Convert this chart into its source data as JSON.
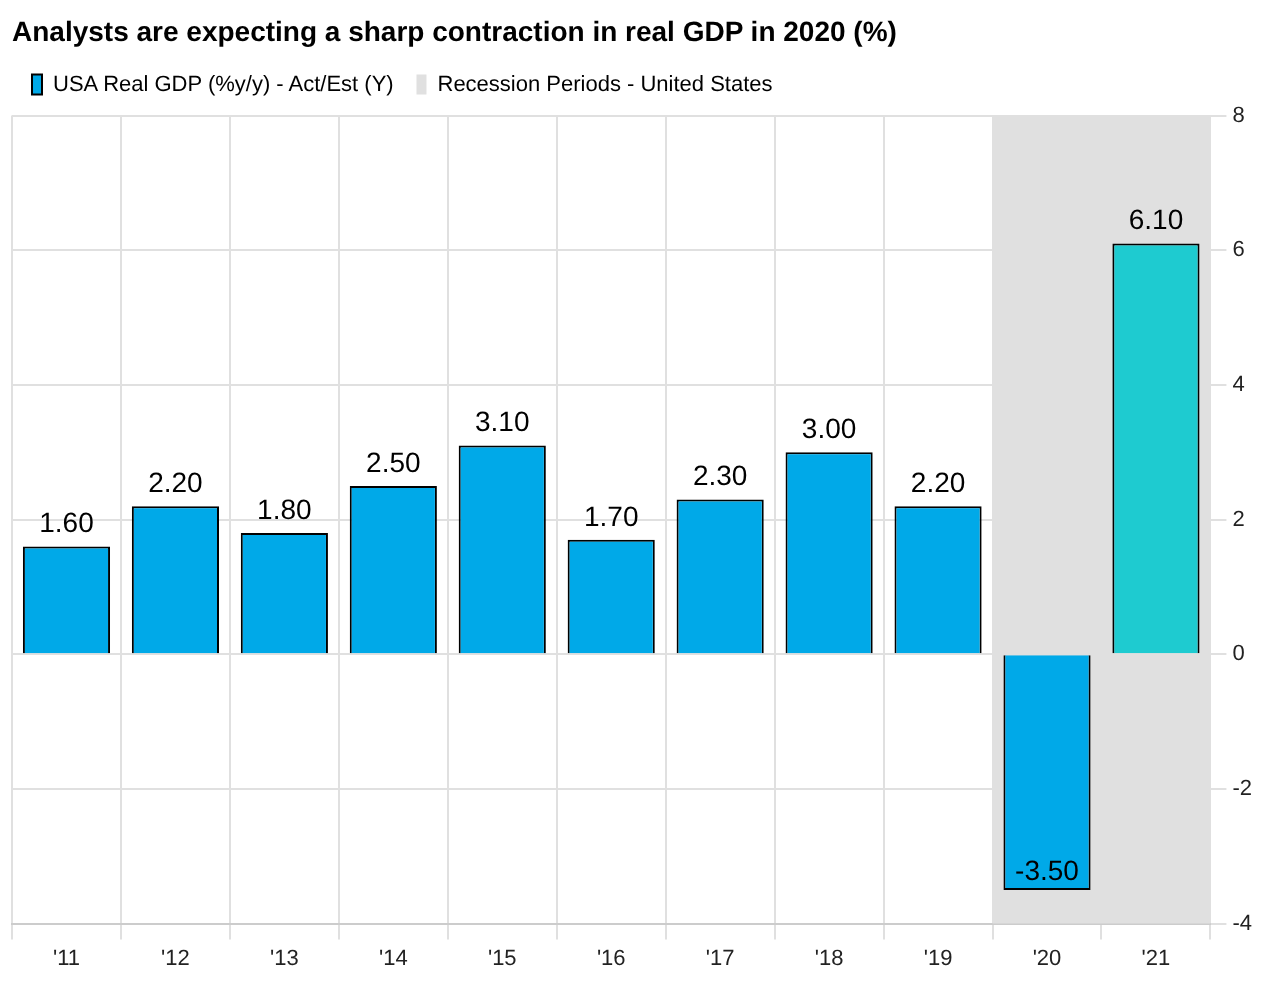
{
  "chart_data": {
    "type": "bar",
    "title": "Analysts are expecting a sharp contraction in real GDP in 2020 (%)",
    "categories": [
      "'11",
      "'12",
      "'13",
      "'14",
      "'15",
      "'16",
      "'17",
      "'18",
      "'19",
      "'20",
      "'21"
    ],
    "series": [
      {
        "name": "USA Real GDP (%y/y) - Act/Est (Y)",
        "color": "#00a9e8",
        "colors": [
          "#00a9e8",
          "#00a9e8",
          "#00a9e8",
          "#00a9e8",
          "#00a9e8",
          "#00a9e8",
          "#00a9e8",
          "#00a9e8",
          "#00a9e8",
          "#00a9e8",
          "#1ecbd0"
        ],
        "values": [
          1.6,
          2.2,
          1.8,
          2.5,
          3.1,
          1.7,
          2.3,
          3.0,
          2.2,
          -3.5,
          6.1
        ],
        "value_labels": [
          "1.60",
          "2.20",
          "1.80",
          "2.50",
          "3.10",
          "1.70",
          "2.30",
          "3.00",
          "2.20",
          "-3.50",
          "6.10"
        ]
      }
    ],
    "ylim": [
      -4,
      8
    ],
    "yticks": [
      -4,
      -2,
      0,
      2,
      4,
      6,
      8
    ],
    "bands": [
      {
        "axis": "x",
        "from": "'20",
        "to": "'21",
        "label": "Recession Periods - United States",
        "color": "#e0e0e0"
      }
    ],
    "grid": true,
    "legend": "top left"
  }
}
